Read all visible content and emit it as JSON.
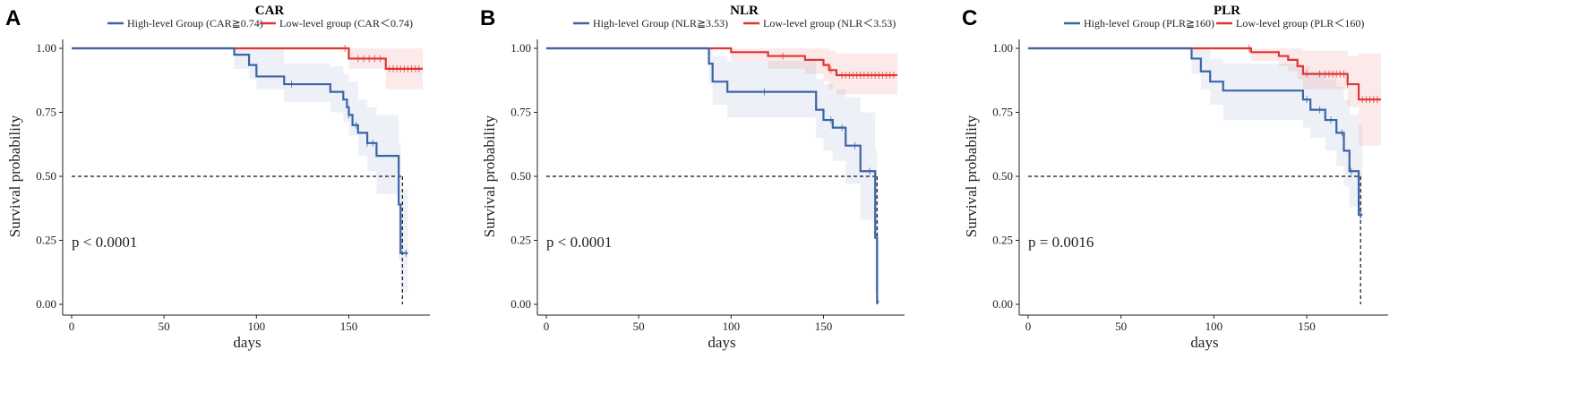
{
  "chart_data": [
    {
      "type": "line",
      "panel_letter": "A",
      "title": "CAR",
      "xlabel": "days",
      "ylabel": "Survival probability",
      "xlim": [
        0,
        190
      ],
      "ylim": [
        0,
        1
      ],
      "xticks": [
        "0",
        "50",
        "100",
        "150"
      ],
      "yticks": [
        "0.00",
        "0.25",
        "0.50",
        "0.75",
        "1.00"
      ],
      "p_value_text": "p < 0.0001",
      "median_line": {
        "y": 0.5,
        "x": 179
      },
      "legend_position": "top",
      "series": [
        {
          "name": "High-level Group (CAR≧0.74)",
          "color": "#3b63a7",
          "steps": [
            [
              0,
              1
            ],
            [
              88,
              1
            ],
            [
              88,
              0.975
            ],
            [
              96,
              0.975
            ],
            [
              96,
              0.935
            ],
            [
              100,
              0.935
            ],
            [
              100,
              0.89
            ],
            [
              115,
              0.89
            ],
            [
              115,
              0.86
            ],
            [
              140,
              0.86
            ],
            [
              140,
              0.83
            ],
            [
              147,
              0.83
            ],
            [
              147,
              0.8
            ],
            [
              149,
              0.8
            ],
            [
              149,
              0.77
            ],
            [
              150,
              0.77
            ],
            [
              150,
              0.74
            ],
            [
              152,
              0.74
            ],
            [
              152,
              0.7
            ],
            [
              155,
              0.7
            ],
            [
              155,
              0.67
            ],
            [
              160,
              0.67
            ],
            [
              160,
              0.63
            ],
            [
              165,
              0.63
            ],
            [
              165,
              0.58
            ],
            [
              177,
              0.58
            ],
            [
              177,
              0.39
            ],
            [
              178,
              0.39
            ],
            [
              178,
              0.2
            ],
            [
              182,
              0.2
            ]
          ],
          "band": [
            [
              0,
              1,
              1
            ],
            [
              88,
              0.92,
              1
            ],
            [
              96,
              0.88,
              1
            ],
            [
              100,
              0.84,
              1
            ],
            [
              115,
              0.79,
              0.94
            ],
            [
              140,
              0.75,
              0.93
            ],
            [
              147,
              0.71,
              0.9
            ],
            [
              150,
              0.66,
              0.87
            ],
            [
              155,
              0.58,
              0.8
            ],
            [
              160,
              0.52,
              0.77
            ],
            [
              165,
              0.43,
              0.74
            ],
            [
              177,
              0.17,
              0.63
            ],
            [
              178,
              0.05,
              0.45
            ],
            [
              182,
              0.05,
              0.45
            ]
          ],
          "censor_x": [
            119,
            150,
            154,
            160,
            163,
            181
          ]
        },
        {
          "name": "Low-level group (CAR＜0.74)",
          "color": "#e03535",
          "steps": [
            [
              0,
              1
            ],
            [
              150,
              1
            ],
            [
              150,
              0.96
            ],
            [
              170,
              0.96
            ],
            [
              170,
              0.92
            ],
            [
              190,
              0.92
            ]
          ],
          "band": [
            [
              0,
              1,
              1
            ],
            [
              150,
              0.92,
              1
            ],
            [
              170,
              0.84,
              1
            ],
            [
              190,
              0.84,
              1
            ]
          ],
          "censor_x": [
            148,
            155,
            158,
            161,
            164,
            167,
            172,
            174,
            176,
            178,
            180,
            182,
            184,
            186,
            188
          ]
        }
      ]
    },
    {
      "type": "line",
      "panel_letter": "B",
      "title": "NLR",
      "xlabel": "days",
      "ylabel": "Survival probability",
      "xlim": [
        0,
        190
      ],
      "ylim": [
        0,
        1
      ],
      "xticks": [
        "0",
        "50",
        "100",
        "150"
      ],
      "yticks": [
        "0.00",
        "0.25",
        "0.50",
        "0.75",
        "1.00"
      ],
      "p_value_text": "p < 0.0001",
      "median_line": {
        "y": 0.5,
        "x": 179
      },
      "legend_position": "top",
      "series": [
        {
          "name": "High-level Group (NLR≧3.53)",
          "color": "#3b63a7",
          "steps": [
            [
              0,
              1
            ],
            [
              88,
              1
            ],
            [
              88,
              0.94
            ],
            [
              90,
              0.94
            ],
            [
              90,
              0.87
            ],
            [
              98,
              0.87
            ],
            [
              98,
              0.83
            ],
            [
              146,
              0.83
            ],
            [
              146,
              0.76
            ],
            [
              150,
              0.76
            ],
            [
              150,
              0.72
            ],
            [
              155,
              0.72
            ],
            [
              155,
              0.69
            ],
            [
              162,
              0.69
            ],
            [
              162,
              0.62
            ],
            [
              170,
              0.62
            ],
            [
              170,
              0.52
            ],
            [
              178,
              0.52
            ],
            [
              178,
              0.26
            ],
            [
              179,
              0.26
            ],
            [
              179,
              0.01
            ],
            [
              180,
              0.01
            ]
          ],
          "band": [
            [
              0,
              1,
              1
            ],
            [
              88,
              0.86,
              1
            ],
            [
              90,
              0.78,
              0.97
            ],
            [
              98,
              0.73,
              0.95
            ],
            [
              146,
              0.65,
              0.88
            ],
            [
              150,
              0.6,
              0.86
            ],
            [
              155,
              0.56,
              0.84
            ],
            [
              162,
              0.47,
              0.81
            ],
            [
              170,
              0.33,
              0.75
            ],
            [
              178,
              0.05,
              0.6
            ],
            [
              179,
              0.0,
              0.35
            ],
            [
              180,
              0.0,
              0.35
            ]
          ],
          "censor_x": [
            118,
            154,
            160,
            167,
            175
          ]
        },
        {
          "name": "Low-level group (NLR＜3.53)",
          "color": "#e03535",
          "steps": [
            [
              0,
              1
            ],
            [
              100,
              1
            ],
            [
              100,
              0.985
            ],
            [
              120,
              0.985
            ],
            [
              120,
              0.97
            ],
            [
              140,
              0.97
            ],
            [
              140,
              0.955
            ],
            [
              150,
              0.955
            ],
            [
              150,
              0.935
            ],
            [
              153,
              0.935
            ],
            [
              153,
              0.915
            ],
            [
              157,
              0.915
            ],
            [
              157,
              0.895
            ],
            [
              190,
              0.895
            ]
          ],
          "band": [
            [
              0,
              1,
              1
            ],
            [
              100,
              0.95,
              1
            ],
            [
              120,
              0.92,
              1
            ],
            [
              140,
              0.9,
              1
            ],
            [
              150,
              0.87,
              1
            ],
            [
              153,
              0.84,
              0.99
            ],
            [
              157,
              0.82,
              0.98
            ],
            [
              190,
              0.82,
              0.98
            ]
          ],
          "censor_x": [
            128,
            154,
            160,
            162,
            164,
            166,
            168,
            170,
            172,
            174,
            176,
            178,
            180,
            182,
            184,
            186,
            188
          ]
        }
      ]
    },
    {
      "type": "line",
      "panel_letter": "C",
      "title": "PLR",
      "xlabel": "days",
      "ylabel": "Survival probability",
      "xlim": [
        0,
        190
      ],
      "ylim": [
        0,
        1
      ],
      "xticks": [
        "0",
        "50",
        "100",
        "150"
      ],
      "yticks": [
        "0.00",
        "0.25",
        "0.50",
        "0.75",
        "1.00"
      ],
      "p_value_text": "p = 0.0016",
      "median_line": {
        "y": 0.5,
        "x": 179
      },
      "legend_position": "top",
      "series": [
        {
          "name": "High-level Group (PLR≧160)",
          "color": "#3b63a7",
          "steps": [
            [
              0,
              1
            ],
            [
              88,
              1
            ],
            [
              88,
              0.96
            ],
            [
              93,
              0.96
            ],
            [
              93,
              0.91
            ],
            [
              98,
              0.91
            ],
            [
              98,
              0.87
            ],
            [
              105,
              0.87
            ],
            [
              105,
              0.835
            ],
            [
              148,
              0.835
            ],
            [
              148,
              0.8
            ],
            [
              152,
              0.8
            ],
            [
              152,
              0.76
            ],
            [
              160,
              0.76
            ],
            [
              160,
              0.72
            ],
            [
              166,
              0.72
            ],
            [
              166,
              0.67
            ],
            [
              170,
              0.67
            ],
            [
              170,
              0.6
            ],
            [
              173,
              0.6
            ],
            [
              173,
              0.52
            ],
            [
              178,
              0.52
            ],
            [
              178,
              0.35
            ],
            [
              180,
              0.35
            ]
          ],
          "band": [
            [
              0,
              1,
              1
            ],
            [
              88,
              0.9,
              1
            ],
            [
              93,
              0.84,
              1
            ],
            [
              98,
              0.78,
              0.96
            ],
            [
              105,
              0.72,
              0.94
            ],
            [
              148,
              0.69,
              0.93
            ],
            [
              152,
              0.65,
              0.91
            ],
            [
              160,
              0.6,
              0.88
            ],
            [
              166,
              0.54,
              0.85
            ],
            [
              170,
              0.46,
              0.8
            ],
            [
              173,
              0.38,
              0.74
            ],
            [
              178,
              0.33,
              0.7
            ],
            [
              180,
              0.33,
              0.7
            ]
          ],
          "censor_x": [
            150,
            157,
            163,
            169,
            174,
            179
          ]
        },
        {
          "name": "Low-level group (PLR＜160)",
          "color": "#e03535",
          "steps": [
            [
              0,
              1
            ],
            [
              120,
              1
            ],
            [
              120,
              0.985
            ],
            [
              135,
              0.985
            ],
            [
              135,
              0.97
            ],
            [
              140,
              0.97
            ],
            [
              140,
              0.955
            ],
            [
              145,
              0.955
            ],
            [
              145,
              0.93
            ],
            [
              148,
              0.93
            ],
            [
              148,
              0.9
            ],
            [
              172,
              0.9
            ],
            [
              172,
              0.86
            ],
            [
              178,
              0.86
            ],
            [
              178,
              0.8
            ],
            [
              190,
              0.8
            ]
          ],
          "band": [
            [
              0,
              1,
              1
            ],
            [
              120,
              0.95,
              1
            ],
            [
              135,
              0.93,
              1
            ],
            [
              140,
              0.91,
              1
            ],
            [
              145,
              0.88,
              1
            ],
            [
              148,
              0.84,
              0.99
            ],
            [
              172,
              0.77,
              0.97
            ],
            [
              178,
              0.62,
              0.98
            ],
            [
              190,
              0.62,
              0.98
            ]
          ],
          "censor_x": [
            119,
            150,
            157,
            160,
            162,
            164,
            166,
            168,
            170,
            172,
            180,
            182,
            184,
            186,
            188
          ]
        }
      ]
    }
  ]
}
